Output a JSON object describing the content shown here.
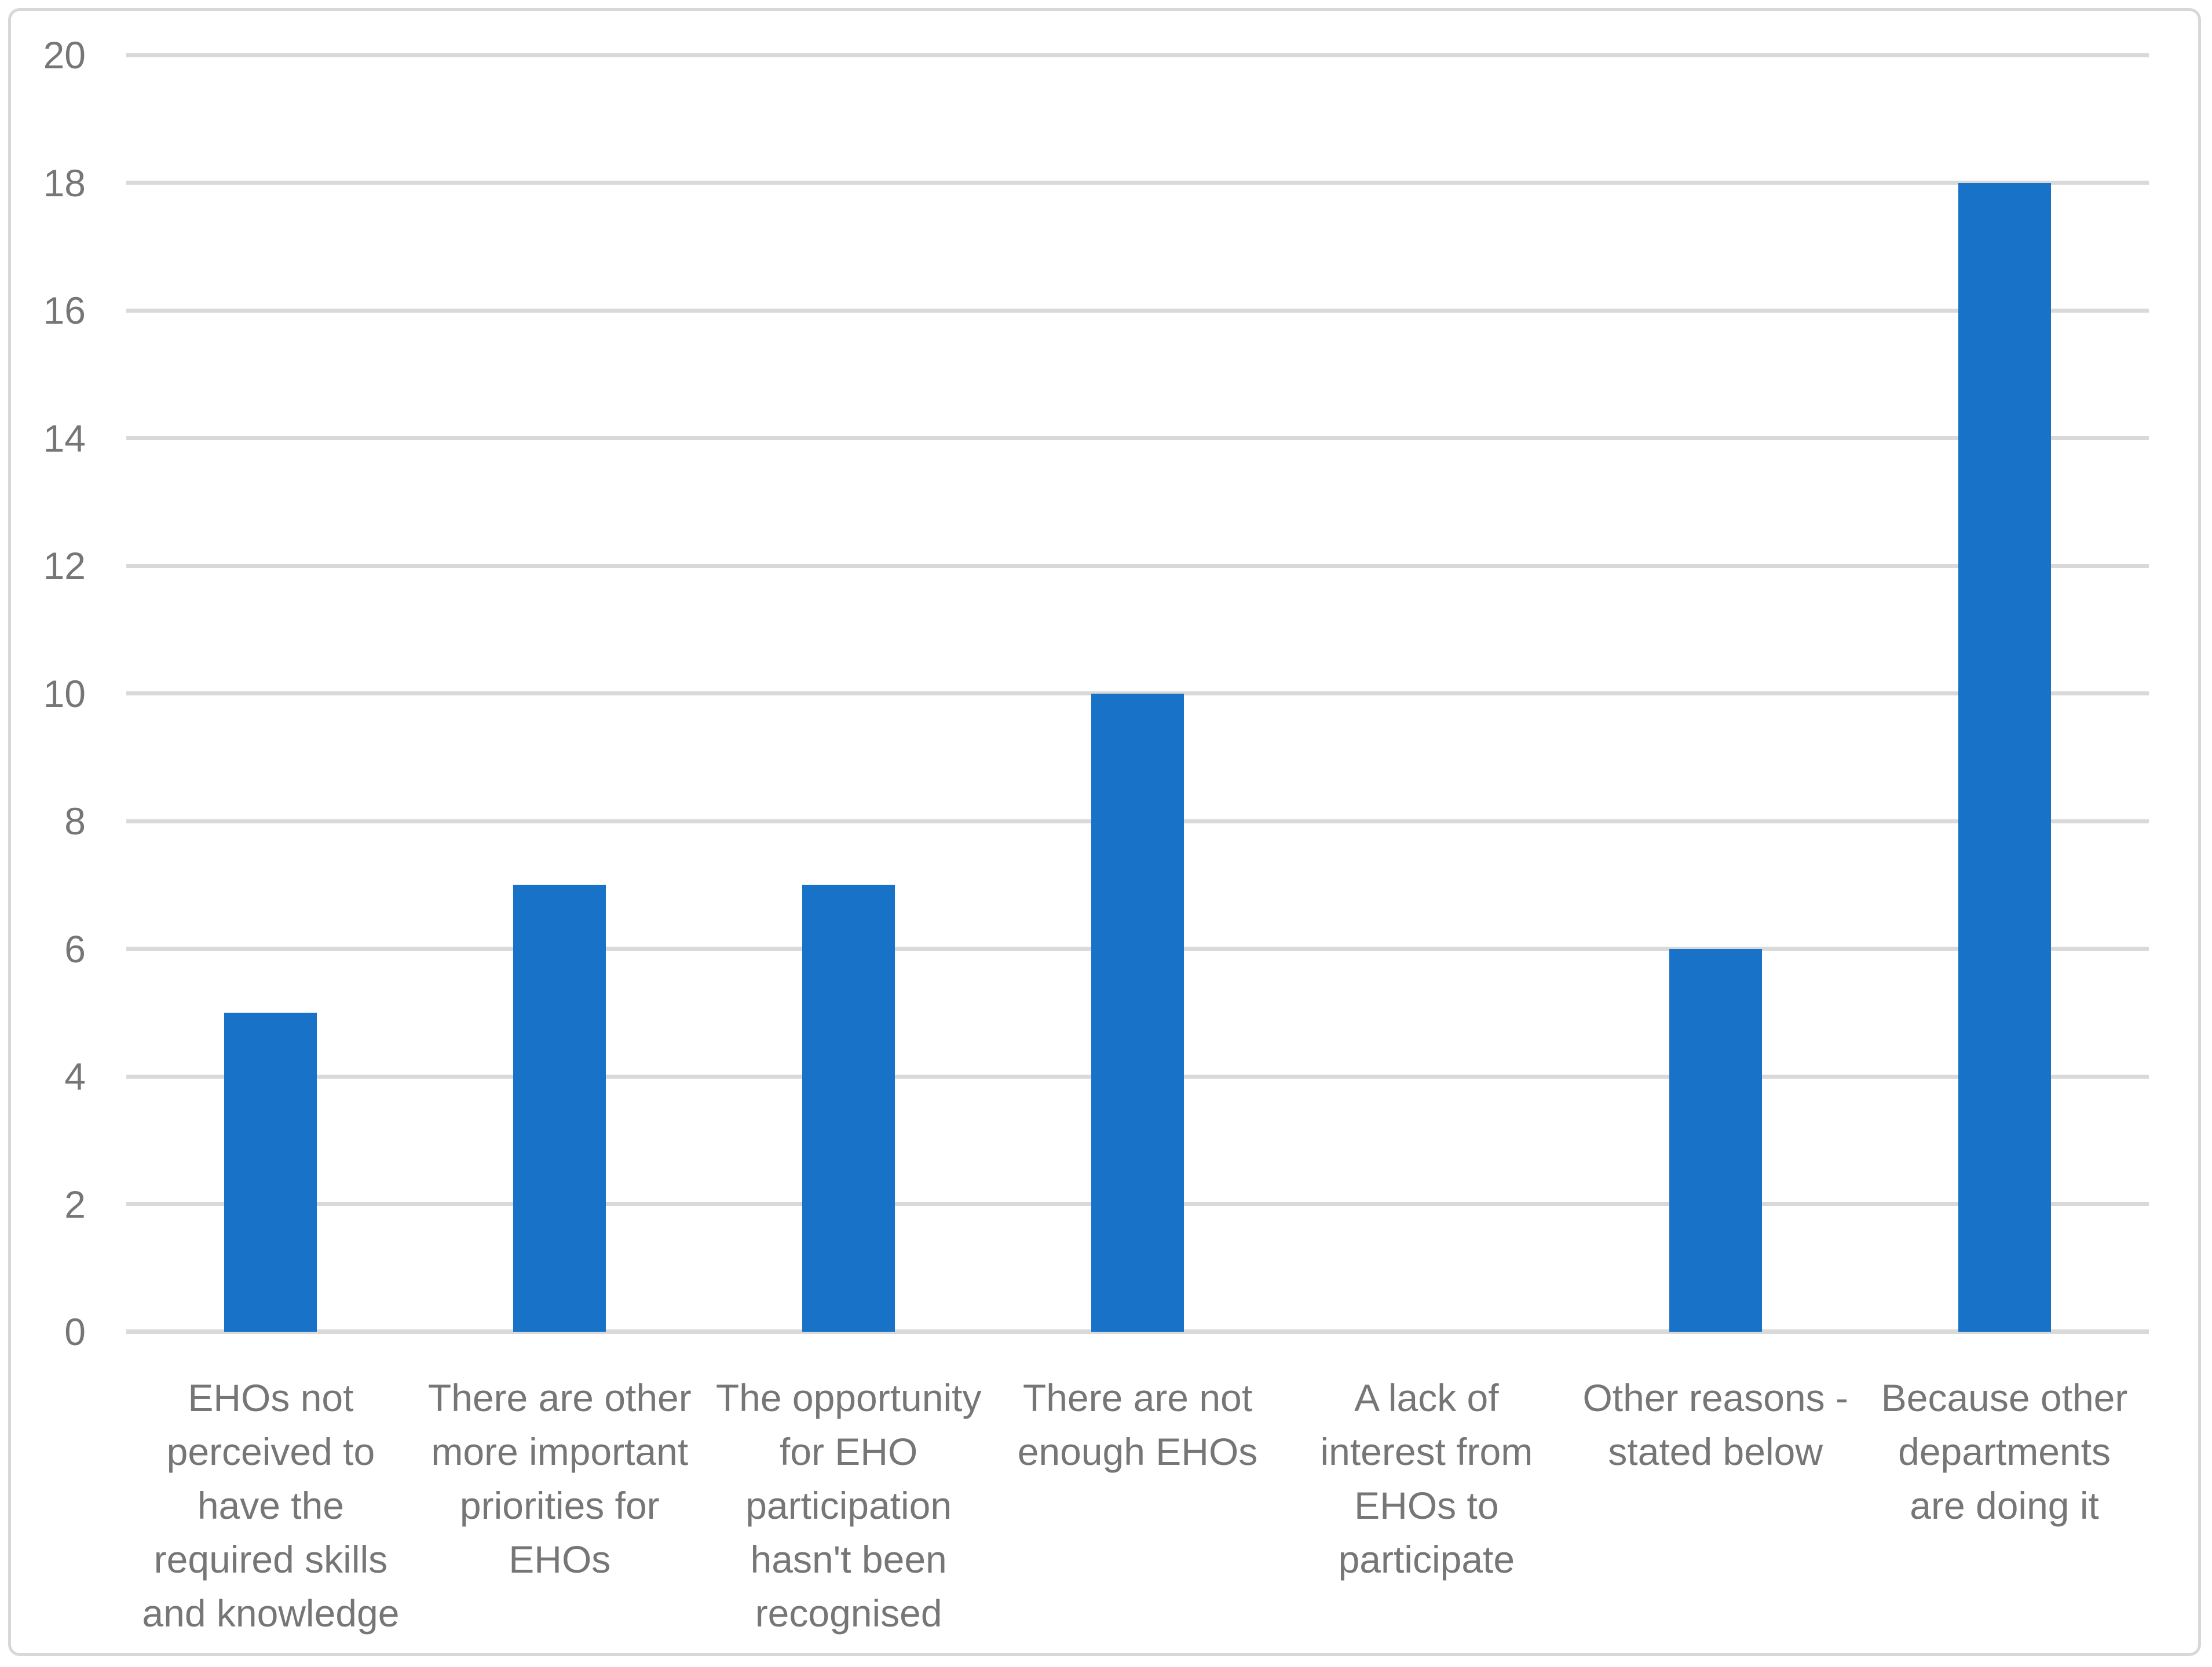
{
  "chart_data": {
    "type": "bar",
    "title": "",
    "xlabel": "",
    "ylabel": "",
    "categories": [
      "EHOs not perceived to have the required skills and knowledge",
      "There are other more important priorities for EHOs",
      "The opportunity for EHO participation hasn't been recognised",
      "There are not enough EHOs",
      "A lack of interest from EHOs to participate",
      "Other reasons - stated below",
      "Because other departments are doing it"
    ],
    "category_wrap": [
      [
        "EHOs not",
        "perceived to",
        "have the",
        "required skills",
        "and knowledge"
      ],
      [
        "There are other",
        "more important",
        "priorities for",
        "EHOs"
      ],
      [
        "The opportunity",
        "for EHO",
        "participation",
        "hasn't been",
        "recognised"
      ],
      [
        "There are not",
        "enough EHOs"
      ],
      [
        "A lack of",
        "interest from",
        "EHOs to",
        "participate"
      ],
      [
        "Other reasons -",
        "stated below"
      ],
      [
        "Because other",
        "departments",
        "are doing it"
      ]
    ],
    "values": [
      5,
      7,
      7,
      10,
      0,
      6,
      18
    ],
    "ylim": [
      0,
      20
    ],
    "ytick_step": 2,
    "y_ticks": [
      0,
      2,
      4,
      6,
      8,
      10,
      12,
      14,
      16,
      18,
      20
    ],
    "grid": "horizontal",
    "legend": "none",
    "bar_color": "#1772C8"
  },
  "style": {
    "grid_color": "#D9D9D9",
    "axis_label_color": "#767676",
    "border_color": "#D8D8D8",
    "background": "#FFFFFF"
  }
}
